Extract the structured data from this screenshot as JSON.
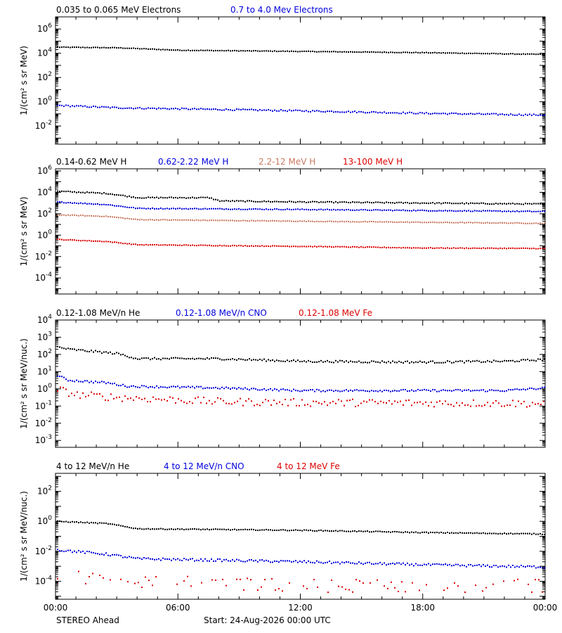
{
  "chart_data": [
    {
      "type": "scatter",
      "ylabel": "1/(cm² s sr MeV)",
      "yscale": "log",
      "ylim_log10": [
        -3.5,
        7
      ],
      "ticks": [
        {
          "exp": -2,
          "label": "10",
          "sup": "-2"
        },
        {
          "exp": 0,
          "label": "10",
          "sup": "0"
        },
        {
          "exp": 2,
          "label": "10",
          "sup": "2"
        },
        {
          "exp": 4,
          "label": "10",
          "sup": "4"
        },
        {
          "exp": 6,
          "label": "10",
          "sup": "6"
        }
      ],
      "legend": [
        {
          "text": "0.035 to 0.065 MeV Electrons",
          "color": "#000000"
        },
        {
          "text": "0.7 to 4.0 Mev Electrons",
          "color": "#0000dd"
        }
      ],
      "series": [
        {
          "name": "0.035 to 0.065 MeV Electrons",
          "color": "#000000",
          "noise": 0.025,
          "step": 3,
          "profile": [
            [
              0,
              4.5
            ],
            [
              3,
              4.45
            ],
            [
              6,
              4.25
            ],
            [
              12,
              4.15
            ],
            [
              18,
              4.05
            ],
            [
              22,
              3.95
            ],
            [
              24,
              3.9
            ]
          ]
        },
        {
          "name": "0.7 to 4.0 Mev Electrons",
          "color": "#0000dd",
          "noise": 0.06,
          "step": 3,
          "profile": [
            [
              0,
              -0.3
            ],
            [
              3,
              -0.5
            ],
            [
              12,
              -0.75
            ],
            [
              18,
              -0.95
            ],
            [
              24,
              -1.1
            ]
          ]
        }
      ]
    },
    {
      "type": "scatter",
      "ylabel": "1/(cm² s sr MeV)",
      "yscale": "log",
      "ylim_log10": [
        -5.5,
        6.2
      ],
      "ticks": [
        {
          "exp": -4,
          "label": "10",
          "sup": "-4"
        },
        {
          "exp": -2,
          "label": "10",
          "sup": "-2"
        },
        {
          "exp": 0,
          "label": "10",
          "sup": "0"
        },
        {
          "exp": 2,
          "label": "10",
          "sup": "2"
        },
        {
          "exp": 4,
          "label": "10",
          "sup": "4"
        },
        {
          "exp": 6,
          "label": "10",
          "sup": "6"
        }
      ],
      "legend": [
        {
          "text": "0.14-0.62 MeV H",
          "color": "#000000"
        },
        {
          "text": "0.62-2.22 MeV H",
          "color": "#0000dd"
        },
        {
          "text": "2.2-12 MeV H",
          "color": "#c87860"
        },
        {
          "text": "13-100 MeV H",
          "color": "#dd0000"
        }
      ],
      "series": [
        {
          "name": "0.14-0.62 MeV H",
          "color": "#000000",
          "noise": 0.05,
          "step": 3,
          "profile": [
            [
              0,
              4.1
            ],
            [
              2.5,
              3.9
            ],
            [
              4,
              3.5
            ],
            [
              7.5,
              3.5
            ],
            [
              8,
              3.2
            ],
            [
              12,
              3.1
            ],
            [
              24,
              2.9
            ]
          ]
        },
        {
          "name": "0.62-2.22 MeV H",
          "color": "#0000dd",
          "noise": 0.04,
          "step": 3,
          "profile": [
            [
              0,
              3.1
            ],
            [
              2.5,
              2.85
            ],
            [
              4,
              2.5
            ],
            [
              12,
              2.4
            ],
            [
              24,
              2.2
            ]
          ]
        },
        {
          "name": "2.2-12 MeV H",
          "color": "#c87860",
          "noise": 0.03,
          "step": 3,
          "profile": [
            [
              0,
              1.9
            ],
            [
              2.5,
              1.75
            ],
            [
              4,
              1.45
            ],
            [
              12,
              1.3
            ],
            [
              24,
              1.1
            ]
          ]
        },
        {
          "name": "13-100 MeV H",
          "color": "#dd0000",
          "noise": 0.03,
          "step": 3,
          "profile": [
            [
              0,
              -0.4
            ],
            [
              2.5,
              -0.6
            ],
            [
              4,
              -0.9
            ],
            [
              12,
              -1.05
            ],
            [
              18,
              -1.2
            ],
            [
              24,
              -1.25
            ]
          ]
        }
      ]
    },
    {
      "type": "scatter",
      "ylabel": "1/(cm² s sr MeV/nuc.)",
      "yscale": "log",
      "ylim_log10": [
        -3.4,
        4
      ],
      "ticks": [
        {
          "exp": -3,
          "label": "10",
          "sup": "-3"
        },
        {
          "exp": -2,
          "label": "10",
          "sup": "-2"
        },
        {
          "exp": -1,
          "label": "10",
          "sup": "-1"
        },
        {
          "exp": 0,
          "label": "10",
          "sup": "0"
        },
        {
          "exp": 1,
          "label": "10",
          "sup": "1"
        },
        {
          "exp": 2,
          "label": "10",
          "sup": "2"
        },
        {
          "exp": 3,
          "label": "10",
          "sup": "3"
        },
        {
          "exp": 4,
          "label": "10",
          "sup": "4"
        }
      ],
      "legend": [
        {
          "text": "0.12-1.08 MeV/n He",
          "color": "#000000"
        },
        {
          "text": "0.12-1.08 MeV/n CNO",
          "color": "#0000dd"
        },
        {
          "text": "0.12-1.08 MeV Fe",
          "color": "#dd0000"
        }
      ],
      "series": [
        {
          "name": "0.12-1.08 MeV/n He",
          "color": "#000000",
          "noise": 0.06,
          "step": 3,
          "profile": [
            [
              0,
              2.45
            ],
            [
              0.6,
              2.3
            ],
            [
              3,
              2.05
            ],
            [
              4,
              1.75
            ],
            [
              8,
              1.75
            ],
            [
              12,
              1.6
            ],
            [
              18,
              1.55
            ],
            [
              22,
              1.6
            ],
            [
              24,
              1.7
            ]
          ]
        },
        {
          "name": "0.12-1.08 MeV/n CNO",
          "color": "#0000dd",
          "noise": 0.06,
          "step": 3,
          "profile": [
            [
              0,
              0.8
            ],
            [
              0.6,
              0.5
            ],
            [
              2.5,
              0.35
            ],
            [
              3.5,
              0.15
            ],
            [
              8,
              0.05
            ],
            [
              12,
              -0.1
            ],
            [
              22,
              -0.1
            ],
            [
              24,
              0.05
            ]
          ]
        },
        {
          "name": "0.12-1.08 MeV Fe",
          "color": "#dd0000",
          "noise": 0.22,
          "step": 4,
          "profile": [
            [
              0,
              0.0
            ],
            [
              1,
              -0.35
            ],
            [
              3,
              -0.5
            ],
            [
              8,
              -0.75
            ],
            [
              12,
              -0.8
            ],
            [
              24,
              -0.85
            ]
          ]
        }
      ]
    },
    {
      "type": "scatter",
      "ylabel": "1/(cm² s sr MeV/nuc.)",
      "yscale": "log",
      "ylim_log10": [
        -5.2,
        3.2
      ],
      "ticks": [
        {
          "exp": -4,
          "label": "10",
          "sup": "-4"
        },
        {
          "exp": -2,
          "label": "10",
          "sup": "-2"
        },
        {
          "exp": 0,
          "label": "10",
          "sup": "0"
        },
        {
          "exp": 2,
          "label": "10",
          "sup": "2"
        }
      ],
      "legend": [
        {
          "text": "4 to 12 MeV/n He",
          "color": "#000000"
        },
        {
          "text": "4 to 12 MeV/n CNO",
          "color": "#0000dd"
        },
        {
          "text": "4 to 12 MeV Fe",
          "color": "#dd0000"
        }
      ],
      "series": [
        {
          "name": "4 to 12 MeV/n He",
          "color": "#000000",
          "noise": 0.03,
          "step": 3,
          "profile": [
            [
              0,
              0.0
            ],
            [
              2.5,
              -0.15
            ],
            [
              4,
              -0.5
            ],
            [
              12,
              -0.6
            ],
            [
              18,
              -0.75
            ],
            [
              24,
              -0.85
            ]
          ]
        },
        {
          "name": "4 to 12 MeV/n CNO",
          "color": "#0000dd",
          "noise": 0.08,
          "step": 3,
          "profile": [
            [
              0,
              -1.9
            ],
            [
              2.5,
              -2.2
            ],
            [
              4,
              -2.5
            ],
            [
              12,
              -2.7
            ],
            [
              18,
              -2.9
            ],
            [
              24,
              -3.05
            ]
          ]
        },
        {
          "name": "4 to 12 MeV Fe",
          "color": "#dd0000",
          "noise": 0.45,
          "step": 5,
          "sparse": true,
          "profile": [
            [
              0,
              -3.6
            ],
            [
              3,
              -4.0
            ],
            [
              12,
              -4.3
            ],
            [
              24,
              -4.3
            ]
          ]
        }
      ]
    }
  ],
  "time_axis": {
    "range_hours": [
      0,
      24
    ],
    "ticks": [
      {
        "h": 0,
        "label": "00:00"
      },
      {
        "h": 6,
        "label": "06:00"
      },
      {
        "h": 12,
        "label": "12:00"
      },
      {
        "h": 18,
        "label": "18:00"
      },
      {
        "h": 24,
        "label": "00:00"
      }
    ]
  },
  "footer": {
    "spacecraft": "STEREO Ahead",
    "start": "Start: 24-Aug-2026 00:00 UTC"
  }
}
